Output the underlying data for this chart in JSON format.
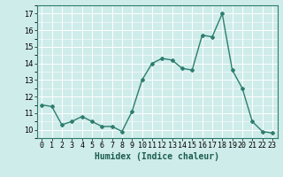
{
  "x": [
    0,
    1,
    2,
    3,
    4,
    5,
    6,
    7,
    8,
    9,
    10,
    11,
    12,
    13,
    14,
    15,
    16,
    17,
    18,
    19,
    20,
    21,
    22,
    23
  ],
  "y": [
    11.5,
    11.4,
    10.3,
    10.5,
    10.8,
    10.5,
    10.2,
    10.2,
    9.9,
    11.1,
    13.0,
    14.0,
    14.3,
    14.2,
    13.7,
    13.6,
    15.7,
    15.6,
    17.0,
    13.6,
    12.5,
    10.5,
    9.9,
    9.8
  ],
  "line_color": "#2e7d6e",
  "marker": "D",
  "marker_size": 2,
  "line_width": 1.0,
  "bg_color": "#ceecea",
  "grid_color": "#ffffff",
  "xlabel": "Humidex (Indice chaleur)",
  "xlabel_fontsize": 7,
  "xlabel_fontweight": "bold",
  "xtick_labels": [
    "0",
    "1",
    "2",
    "3",
    "4",
    "5",
    "6",
    "7",
    "8",
    "9",
    "10",
    "11",
    "12",
    "13",
    "14",
    "15",
    "16",
    "17",
    "18",
    "19",
    "20",
    "21",
    "22",
    "23"
  ],
  "ylim": [
    9.5,
    17.5
  ],
  "yticks": [
    10,
    11,
    12,
    13,
    14,
    15,
    16,
    17
  ],
  "tick_fontsize": 6,
  "xlim": [
    -0.5,
    23.5
  ]
}
